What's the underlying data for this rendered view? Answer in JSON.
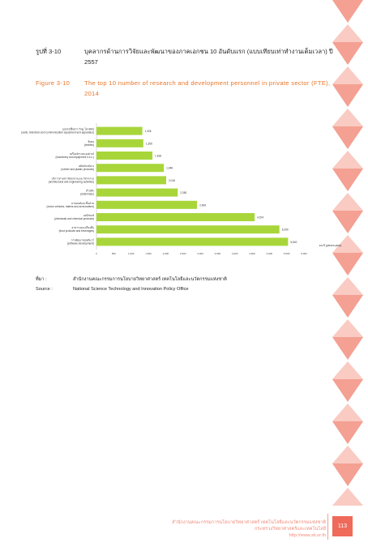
{
  "figure": {
    "label_th": "รูปที่ 3-10",
    "title_th": "บุคลากรด้านการวิจัยและพัฒนาของภาคเอกชน 10 อันดับแรก (แบบเทียบเท่าทำงานเต็มเวลา) ปี 2557",
    "label_en": "Figure 3-10",
    "title_en": "The top 10 number of research and development personnel in private sector (FTE), 2014"
  },
  "chart_data": {
    "type": "bar",
    "orientation": "horizontal",
    "categories": [
      "อุปกรณ์สื่อสาร วิทยุ โทรทัศน์ (radio, television and communication equipment and apparatus)",
      "สิ่งทอ (textiles)",
      "เครื่องจักรและอุปกรณ์ (machinery and equipment n.e.c.)",
      "ผลิตภัณฑ์ยาง (rubber and plastic products)",
      "บริการทางสถาปัตยกรรมและวิศวกรรม (architectural and engineering activities)",
      "ค้าปลีก (retail trade)",
      "ยานยนต์และชิ้นส่วน (motor vehicles, trailers and semi-trailers)",
      "เคมีภัณฑ์ (chemicals and chemical products)",
      "อาหารและเครื่องดื่ม (food products and beverages)",
      "การพัฒนาซอฟต์แวร์ (software development)"
    ],
    "values": [
      1326,
      1355,
      1618,
      1948,
      2016,
      2350,
      2909,
      4574,
      5290,
      5540
    ],
    "data_labels": [
      "1,326",
      "1,355",
      "1,618",
      "1,948",
      "2,016",
      "2,350",
      "2,909",
      "4,574",
      "5,290",
      "5,540"
    ],
    "xlim": [
      0,
      6000
    ],
    "xticks": [
      "0",
      "500",
      "1,000",
      "1,500",
      "2,000",
      "2,500",
      "3,000",
      "3,500",
      "4,000",
      "4,500",
      "5,000",
      "5,500",
      "6,000"
    ],
    "xlabel": "คน-ปี (person-year)",
    "bar_color": "#a8d63a",
    "grid": false
  },
  "source": {
    "label_th": "ที่มา :",
    "text_th": "สำนักงานคณะกรรมการนโยบายวิทยาศาสตร์ เทคโนโลยีและนวัตกรรมแห่งชาติ",
    "label_en": "Source :",
    "text_en": "National Science Technology and Innovation Policy Office"
  },
  "footer": {
    "org_th": "สำนักงานคณะกรรมการนโยบายวิทยาศาสตร์ เทคโนโลยีและนวัตกรรมแห่งชาติ",
    "ministry_th": "กระทรวงวิทยาศาสตร์และเทคโนโลยี",
    "url": "http://www.sti.or.th",
    "page_number": "113"
  },
  "colors": {
    "accent": "#e8762a",
    "decor": "#f4a092",
    "page_box": "#ef6a5a"
  }
}
